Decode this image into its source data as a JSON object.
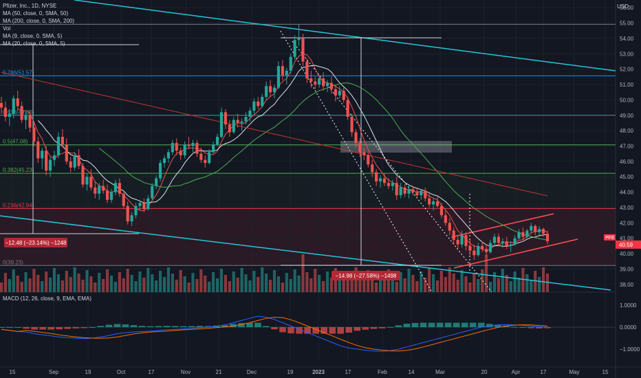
{
  "header": {
    "symbol": "Pfizer, Inc., 1D, NYSE",
    "ma1": "MA (50, close, 0, SMA, 50)",
    "ma2": "MA (200, close, 0, SMA, 200)",
    "vol": "Vol",
    "ma3": "MA (9, close, 0, SMA, 5)",
    "ma4": "MA (20, close, 0, SMA, 5)",
    "currency": "USD"
  },
  "macd": {
    "label": "MACD (12, 26, close, 9, EMA, EMA)"
  },
  "chart_data": {
    "type": "candlestick",
    "price_axis": {
      "ylim": [
        37.5,
        56.5
      ],
      "ticks": [
        "56.00",
        "55.00",
        "54.00",
        "53.00",
        "52.00",
        "51.00",
        "50.00",
        "49.00",
        "48.00",
        "47.00",
        "46.00",
        "45.00",
        "44.00",
        "43.00",
        "42.00",
        "41.00",
        "40.00",
        "39.00",
        "38.00"
      ]
    },
    "macd_axis": {
      "ylim": [
        -1.5,
        1.5
      ],
      "ticks": [
        "1.0000",
        "0.0000",
        "−1.0000"
      ]
    },
    "x_ticks": [
      "15",
      "Sep",
      "19",
      "Oct",
      "17",
      "Nov",
      "21",
      "Dec",
      "19",
      "2023",
      "17",
      "Feb",
      "14",
      "Mar",
      "20",
      "Apr",
      "17",
      "May",
      "15"
    ],
    "fib_levels": [
      {
        "label": "0.786(51.57)",
        "value": 51.57,
        "color": "#2196f3"
      },
      {
        "label": "0.618(49.00)",
        "value": 49.0,
        "color": "#26a69a"
      },
      {
        "label": "0.5(47.08)",
        "value": 47.08,
        "color": "#4caf50"
      },
      {
        "label": "0.382(45.23)",
        "value": 45.23,
        "color": "#4caf50"
      },
      {
        "label": "0.236(42.94)",
        "value": 42.94,
        "color": "#f23645"
      },
      {
        "label": "0(39.23)",
        "value": 39.23,
        "color": "#787b86"
      }
    ],
    "top_line": {
      "value": 54.92,
      "color": "#787b86"
    },
    "price_label": {
      "symbol": "PFE",
      "value": "40.59",
      "color": "#f23645"
    },
    "measure_labels": [
      {
        "text": "−12.48 (−23.14%) −1248"
      },
      {
        "text": "−14.98 (−27.58%) −1498"
      }
    ],
    "candles": [
      [
        49.8,
        50.2,
        49.1,
        49.5
      ],
      [
        49.5,
        49.9,
        48.6,
        48.9
      ],
      [
        48.9,
        49.4,
        48.3,
        49.1
      ],
      [
        49.1,
        50.3,
        48.8,
        50.1
      ],
      [
        50.1,
        50.6,
        49.3,
        49.6
      ],
      [
        49.6,
        49.9,
        48.5,
        48.7
      ],
      [
        48.7,
        49.2,
        48.1,
        49.0
      ],
      [
        49.0,
        49.3,
        47.9,
        48.2
      ],
      [
        48.2,
        48.6,
        47.0,
        47.3
      ],
      [
        47.3,
        47.6,
        45.9,
        46.2
      ],
      [
        46.2,
        46.9,
        45.5,
        46.7
      ],
      [
        46.7,
        47.0,
        45.1,
        45.4
      ],
      [
        45.4,
        46.3,
        45.0,
        46.1
      ],
      [
        46.1,
        46.7,
        45.7,
        46.4
      ],
      [
        46.4,
        47.9,
        46.2,
        47.6
      ],
      [
        47.6,
        48.1,
        46.9,
        47.1
      ],
      [
        47.1,
        47.5,
        45.8,
        46.0
      ],
      [
        46.0,
        46.3,
        45.3,
        45.6
      ],
      [
        45.6,
        46.6,
        45.4,
        46.4
      ],
      [
        46.4,
        46.8,
        45.5,
        45.7
      ],
      [
        45.7,
        45.9,
        44.3,
        44.5
      ],
      [
        44.5,
        45.2,
        44.1,
        45.0
      ],
      [
        45.0,
        45.5,
        44.1,
        44.3
      ],
      [
        44.3,
        44.7,
        43.6,
        43.9
      ],
      [
        43.9,
        44.6,
        43.5,
        44.4
      ],
      [
        44.4,
        44.8,
        43.9,
        44.1
      ],
      [
        44.1,
        44.5,
        43.3,
        43.5
      ],
      [
        43.5,
        44.2,
        43.3,
        44.0
      ],
      [
        44.0,
        44.8,
        43.8,
        44.6
      ],
      [
        44.6,
        44.9,
        43.7,
        43.9
      ],
      [
        43.9,
        44.0,
        42.9,
        43.1
      ],
      [
        43.1,
        43.4,
        41.9,
        42.1
      ],
      [
        42.1,
        42.7,
        41.8,
        42.5
      ],
      [
        42.5,
        43.3,
        42.3,
        43.1
      ],
      [
        43.1,
        43.5,
        42.8,
        43.3
      ],
      [
        43.3,
        43.6,
        42.7,
        42.9
      ],
      [
        42.9,
        43.8,
        42.8,
        43.6
      ],
      [
        43.6,
        44.6,
        43.5,
        44.4
      ],
      [
        44.4,
        45.1,
        44.2,
        44.9
      ],
      [
        44.9,
        46.1,
        44.7,
        45.9
      ],
      [
        45.9,
        46.4,
        45.6,
        46.2
      ],
      [
        46.2,
        46.8,
        45.9,
        46.6
      ],
      [
        46.6,
        47.4,
        46.4,
        47.2
      ],
      [
        47.2,
        47.5,
        46.4,
        46.7
      ],
      [
        46.7,
        46.9,
        46.1,
        46.4
      ],
      [
        46.4,
        47.3,
        46.2,
        47.1
      ],
      [
        47.1,
        47.6,
        46.8,
        47.0
      ],
      [
        47.0,
        47.4,
        46.6,
        47.2
      ],
      [
        47.2,
        47.4,
        46.3,
        46.5
      ],
      [
        46.5,
        46.9,
        45.9,
        46.1
      ],
      [
        46.1,
        46.4,
        45.6,
        45.9
      ],
      [
        45.9,
        46.8,
        45.8,
        46.6
      ],
      [
        46.6,
        47.3,
        46.5,
        47.1
      ],
      [
        47.1,
        47.8,
        47.0,
        47.6
      ],
      [
        47.6,
        49.5,
        47.5,
        49.2
      ],
      [
        49.2,
        49.4,
        48.1,
        48.4
      ],
      [
        48.4,
        48.7,
        47.6,
        47.9
      ],
      [
        47.9,
        48.9,
        47.8,
        48.7
      ],
      [
        48.7,
        49.1,
        48.2,
        48.5
      ],
      [
        48.5,
        48.8,
        48.0,
        48.6
      ],
      [
        48.6,
        49.2,
        48.4,
        48.9
      ],
      [
        48.9,
        49.5,
        48.6,
        49.3
      ],
      [
        49.3,
        50.1,
        49.1,
        49.9
      ],
      [
        49.9,
        50.2,
        49.4,
        49.6
      ],
      [
        49.6,
        50.4,
        49.5,
        50.2
      ],
      [
        50.2,
        51.2,
        50.0,
        50.9
      ],
      [
        50.9,
        51.3,
        50.2,
        50.5
      ],
      [
        50.5,
        51.0,
        50.1,
        50.8
      ],
      [
        50.8,
        52.5,
        50.7,
        52.2
      ],
      [
        52.2,
        52.6,
        51.3,
        51.6
      ],
      [
        51.6,
        52.1,
        51.0,
        51.9
      ],
      [
        51.9,
        53.0,
        51.7,
        52.8
      ],
      [
        52.8,
        54.2,
        52.6,
        53.9
      ],
      [
        53.9,
        54.9,
        53.5,
        54.0
      ],
      [
        54.0,
        54.3,
        52.2,
        52.5
      ],
      [
        52.5,
        52.7,
        51.1,
        51.4
      ],
      [
        51.4,
        51.9,
        50.8,
        51.2
      ],
      [
        51.2,
        51.5,
        50.7,
        51.0
      ],
      [
        51.0,
        51.6,
        50.8,
        51.4
      ],
      [
        51.4,
        51.8,
        50.6,
        50.9
      ],
      [
        50.9,
        51.3,
        50.5,
        51.1
      ],
      [
        51.1,
        51.5,
        50.4,
        50.7
      ],
      [
        50.7,
        51.0,
        49.9,
        50.3
      ],
      [
        50.3,
        50.9,
        50.1,
        50.6
      ],
      [
        50.6,
        50.8,
        49.8,
        50.0
      ],
      [
        50.0,
        50.2,
        48.7,
        48.9
      ],
      [
        48.9,
        49.1,
        47.6,
        47.9
      ],
      [
        47.9,
        48.1,
        46.9,
        47.2
      ],
      [
        47.2,
        47.5,
        46.3,
        46.6
      ],
      [
        46.6,
        46.9,
        46.1,
        46.4
      ],
      [
        46.4,
        46.6,
        45.6,
        45.8
      ],
      [
        45.8,
        46.1,
        45.0,
        45.3
      ],
      [
        45.3,
        45.5,
        44.4,
        44.7
      ],
      [
        44.7,
        45.1,
        44.3,
        44.9
      ],
      [
        44.9,
        45.2,
        44.4,
        44.6
      ],
      [
        44.6,
        44.9,
        44.2,
        44.4
      ],
      [
        44.4,
        44.8,
        44.1,
        44.6
      ],
      [
        44.6,
        45.0,
        43.5,
        43.8
      ],
      [
        43.8,
        44.6,
        43.6,
        44.3
      ],
      [
        44.3,
        44.5,
        43.7,
        43.9
      ],
      [
        43.9,
        44.4,
        43.6,
        44.2
      ],
      [
        44.2,
        44.4,
        43.8,
        44.0
      ],
      [
        44.0,
        44.3,
        43.6,
        43.8
      ],
      [
        43.8,
        44.2,
        43.5,
        44.1
      ],
      [
        44.1,
        44.3,
        43.4,
        43.6
      ],
      [
        43.6,
        43.9,
        43.0,
        43.2
      ],
      [
        43.2,
        43.6,
        42.8,
        43.4
      ],
      [
        43.4,
        43.7,
        43.0,
        43.1
      ],
      [
        43.1,
        43.3,
        42.3,
        42.5
      ],
      [
        42.5,
        42.8,
        41.8,
        42.0
      ],
      [
        42.0,
        42.3,
        41.2,
        41.5
      ],
      [
        41.5,
        41.7,
        40.6,
        40.9
      ],
      [
        40.9,
        41.2,
        40.3,
        40.6
      ],
      [
        40.6,
        41.5,
        40.4,
        41.2
      ],
      [
        41.2,
        41.4,
        40.2,
        40.5
      ],
      [
        40.5,
        40.9,
        39.9,
        40.2
      ],
      [
        40.2,
        40.6,
        39.6,
        39.9
      ],
      [
        39.9,
        40.7,
        39.8,
        40.5
      ],
      [
        40.5,
        40.8,
        40.1,
        40.3
      ],
      [
        40.3,
        40.6,
        39.8,
        40.1
      ],
      [
        40.1,
        40.9,
        40.0,
        40.7
      ],
      [
        40.7,
        41.3,
        40.5,
        41.1
      ],
      [
        41.1,
        41.3,
        40.5,
        40.7
      ],
      [
        40.7,
        41.0,
        40.4,
        40.8
      ],
      [
        40.8,
        41.1,
        40.3,
        40.5
      ],
      [
        40.5,
        40.8,
        40.1,
        40.6
      ],
      [
        40.6,
        41.2,
        40.5,
        41.0
      ],
      [
        41.0,
        41.6,
        40.9,
        41.4
      ],
      [
        41.4,
        41.7,
        40.9,
        41.1
      ],
      [
        41.1,
        41.6,
        41.0,
        41.5
      ],
      [
        41.5,
        42.0,
        41.3,
        41.8
      ],
      [
        41.8,
        41.9,
        41.2,
        41.4
      ],
      [
        41.4,
        41.8,
        41.2,
        41.6
      ],
      [
        41.6,
        41.7,
        41.1,
        41.3
      ],
      [
        41.3,
        41.5,
        40.6,
        40.8
      ]
    ],
    "macd": [
      -0.1,
      -0.15,
      -0.2,
      -0.22,
      -0.3,
      -0.35,
      -0.4,
      -0.45,
      -0.48,
      -0.5,
      -0.52,
      -0.5,
      -0.45,
      -0.38,
      -0.3,
      -0.25,
      -0.22,
      -0.2,
      -0.18,
      -0.15,
      -0.12,
      -0.1,
      -0.08,
      -0.05,
      -0.02,
      0.0,
      0.05,
      0.1,
      0.2,
      0.3,
      0.4,
      0.5,
      0.45,
      0.35,
      0.2,
      0.05,
      -0.1,
      -0.25,
      -0.4,
      -0.55,
      -0.7,
      -0.85,
      -0.95,
      -1.0,
      -1.05,
      -1.08,
      -1.1,
      -1.07,
      -1.0,
      -0.9,
      -0.8,
      -0.7,
      -0.6,
      -0.5,
      -0.4,
      -0.3,
      -0.2,
      -0.1,
      0.0,
      0.05,
      0.1,
      0.12,
      0.1,
      0.08,
      0.05,
      0.02,
      0.0
    ]
  }
}
